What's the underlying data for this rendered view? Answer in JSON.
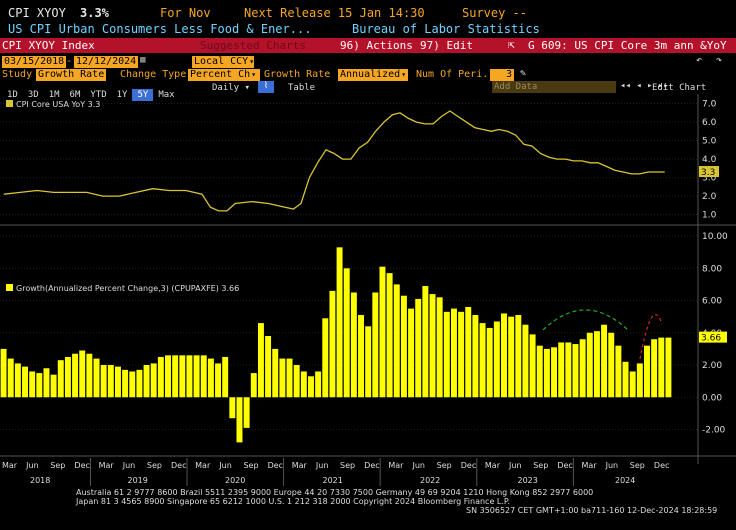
{
  "header": {
    "ticker": "CPI XYOY",
    "value": "3.3%",
    "period": "For Nov",
    "next_release": "Next Release 15 Jan 14:30",
    "survey": "Survey --",
    "description": "US CPI Urban Consumers Less Food & Ener...",
    "source": "Bureau of Labor Statistics"
  },
  "toolbar": {
    "index_name": "CPI XYOY Index",
    "suggested": "Suggested Charts",
    "actions": "96) Actions",
    "edit": "97) Edit",
    "chart_title": "G 609: US CPI Core 3m ann &YoY"
  },
  "study_bar": {
    "study_label": "Study",
    "study_value": "Growth Rate",
    "change_type_label": "Change Type",
    "change_type_value": "Percent Ch",
    "growth_rate_label": "Growth Rate",
    "growth_rate_value": "Annualized",
    "num_periods_label": "Num Of Peri...",
    "num_periods_value": "3"
  },
  "date_bar": {
    "start": "03/15/2018",
    "end": "12/12/2024",
    "currency": "Local CCY"
  },
  "range_tabs": [
    "1D",
    "3D",
    "1M",
    "6M",
    "YTD",
    "1Y",
    "5Y",
    "Max"
  ],
  "active_tab": "5Y",
  "frequency": "Daily",
  "table_label": "Table",
  "add_data": "Add Data",
  "edit_chart": "Edit Chart",
  "colors": {
    "amber": "#f5a623",
    "yellow": "#ffff00",
    "line": "#d9c531",
    "red": "#b4122a",
    "blue": "#3a6fd8"
  },
  "chart_data": [
    {
      "type": "line",
      "legend": "CPI Core USA YoY 3.3",
      "last_value_tag": "3.3",
      "y_ticks": [
        "1.0",
        "2.0",
        "3.0",
        "4.0",
        "5.0",
        "6.0",
        "7.0"
      ],
      "ylim": [
        0.6,
        7.3
      ],
      "x": [
        "2018-03",
        "2018-05",
        "2018-07",
        "2018-09",
        "2018-11",
        "2019-01",
        "2019-03",
        "2019-05",
        "2019-07",
        "2019-09",
        "2019-11",
        "2020-01",
        "2020-03",
        "2020-04",
        "2020-05",
        "2020-06",
        "2020-07",
        "2020-09",
        "2020-11",
        "2021-01",
        "2021-02",
        "2021-03",
        "2021-04",
        "2021-05",
        "2021-06",
        "2021-07",
        "2021-08",
        "2021-09",
        "2021-10",
        "2021-11",
        "2021-12",
        "2022-01",
        "2022-02",
        "2022-03",
        "2022-04",
        "2022-05",
        "2022-06",
        "2022-07",
        "2022-08",
        "2022-09",
        "2022-10",
        "2022-11",
        "2022-12",
        "2023-01",
        "2023-02",
        "2023-03",
        "2023-04",
        "2023-05",
        "2023-06",
        "2023-07",
        "2023-08",
        "2023-09",
        "2023-10",
        "2023-11",
        "2023-12",
        "2024-01",
        "2024-02",
        "2024-03",
        "2024-04",
        "2024-05",
        "2024-06",
        "2024-07",
        "2024-08",
        "2024-09",
        "2024-10",
        "2024-11"
      ],
      "values": [
        2.1,
        2.2,
        2.3,
        2.2,
        2.2,
        2.2,
        2.0,
        2.0,
        2.2,
        2.4,
        2.3,
        2.3,
        2.1,
        1.4,
        1.2,
        1.2,
        1.6,
        1.7,
        1.6,
        1.4,
        1.3,
        1.6,
        3.0,
        3.8,
        4.5,
        4.3,
        4.0,
        4.0,
        4.6,
        4.9,
        5.5,
        6.0,
        6.4,
        6.5,
        6.2,
        6.0,
        5.9,
        5.9,
        6.3,
        6.6,
        6.3,
        6.0,
        5.7,
        5.6,
        5.5,
        5.6,
        5.5,
        5.3,
        4.8,
        4.7,
        4.3,
        4.1,
        4.0,
        4.0,
        3.9,
        3.9,
        3.8,
        3.8,
        3.6,
        3.4,
        3.3,
        3.2,
        3.2,
        3.3,
        3.3,
        3.3
      ]
    },
    {
      "type": "bar",
      "legend": "Growth(Annualized Percent Change,3) (CPUPAXFE) 3.66",
      "last_value_tag": "3.66",
      "y_ticks": [
        "-2.00",
        "0.00",
        "2.00",
        "4.00",
        "6.00",
        "8.00",
        "10.00"
      ],
      "ylim": [
        -2.9,
        10.5
      ],
      "values": [
        3.0,
        2.4,
        2.1,
        1.9,
        1.6,
        1.5,
        1.8,
        1.4,
        2.3,
        2.5,
        2.7,
        2.9,
        2.7,
        2.4,
        2.0,
        2.0,
        1.9,
        1.7,
        1.6,
        1.7,
        2.0,
        2.1,
        2.5,
        2.6,
        2.6,
        2.6,
        2.6,
        2.6,
        2.6,
        2.4,
        2.1,
        2.5,
        -1.3,
        -2.8,
        -1.9,
        1.5,
        4.6,
        3.8,
        3.0,
        2.4,
        2.4,
        2.0,
        1.6,
        1.3,
        1.6,
        4.9,
        6.6,
        9.3,
        8.0,
        6.5,
        5.1,
        4.4,
        6.5,
        8.1,
        7.7,
        7.0,
        6.3,
        5.5,
        6.1,
        6.9,
        6.4,
        6.2,
        5.3,
        5.5,
        5.3,
        5.6,
        5.1,
        4.6,
        4.3,
        4.7,
        5.2,
        5.0,
        5.1,
        4.5,
        3.9,
        3.2,
        3.0,
        3.1,
        3.4,
        3.4,
        3.3,
        3.6,
        4.0,
        4.1,
        4.5,
        4.0,
        3.2,
        2.2,
        1.6,
        2.1,
        3.2,
        3.6,
        3.7,
        3.7
      ],
      "year_labels": [
        "2018",
        "2019",
        "2020",
        "2021",
        "2022",
        "2023",
        "2024"
      ],
      "month_labels": [
        "Mar",
        "Jun",
        "Sep",
        "Dec"
      ]
    }
  ],
  "footer": {
    "line1": "Australia 61 2 9777 8600 Brazil 5511 2395 9000 Europe 44 20 7330 7500 Germany 49 69 9204 1210 Hong Kong 852 2977 6000",
    "line2": "Japan 81 3 4565 8900          Singapore 65 6212 1000          U.S. 1 212 318 2000               Copyright 2024 Bloomberg Finance L.P.",
    "line3": "SN 3506527 CET  GMT+1:00 ba711-160 12-Dec-2024 18:28:59"
  }
}
